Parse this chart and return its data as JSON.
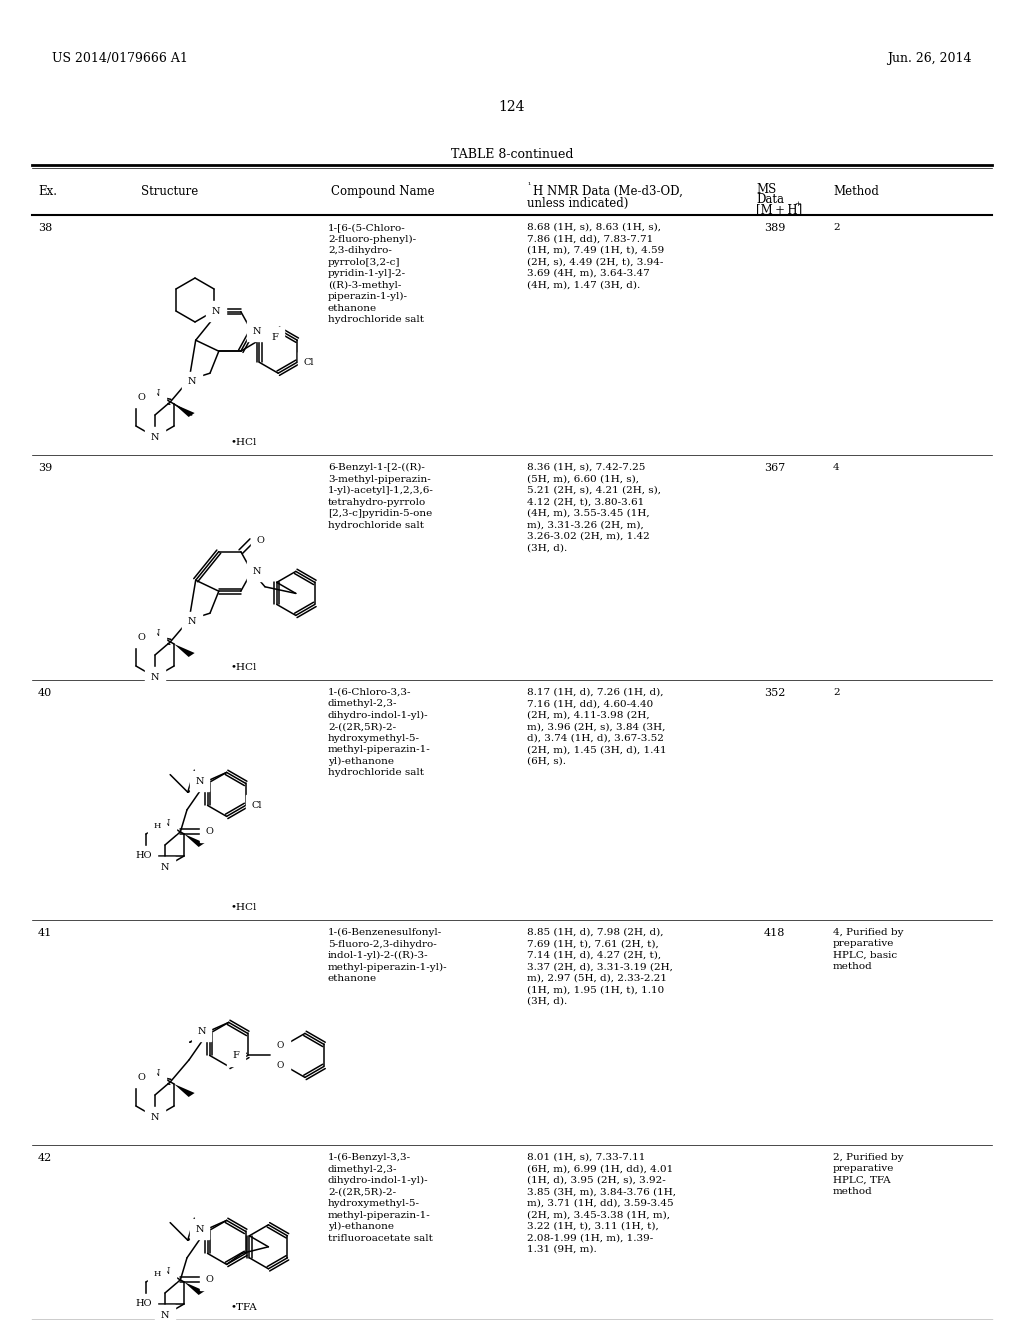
{
  "page_header_left": "US 2014/0179666 A1",
  "page_header_right": "Jun. 26, 2014",
  "page_number": "124",
  "table_title": "TABLE 8-continued",
  "rows": [
    {
      "ex": "38",
      "compound_name": "1-[6-(5-Chloro-\n2-fluoro-phenyl)-\n2,3-dihydro-\npyrrolo[3,2-c]\npyridin-1-yl]-2-\n((R)-3-methyl-\npiperazin-1-yl)-\nethanone\nhydrochloride salt",
      "nmr": "8.68 (1H, s), 8.63 (1H, s),\n7.86 (1H, dd), 7.83-7.71\n(1H, m), 7.49 (1H, t), 4.59\n(2H, s), 4.49 (2H, t), 3.94-\n3.69 (4H, m), 3.64-3.47\n(4H, m), 1.47 (3H, d).",
      "ms": "389",
      "method": "2",
      "salt": "•HCl"
    },
    {
      "ex": "39",
      "compound_name": "6-Benzyl-1-[2-((R)-\n3-methyl-piperazin-\n1-yl)-acetyl]-1,2,3,6-\ntetrahydro-pyrrolo\n[2,3-c]pyridin-5-one\nhydrochloride salt",
      "nmr": "8.36 (1H, s), 7.42-7.25\n(5H, m), 6.60 (1H, s),\n5.21 (2H, s), 4.21 (2H, s),\n4.12 (2H, t), 3.80-3.61\n(4H, m), 3.55-3.45 (1H,\nm), 3.31-3.26 (2H, m),\n3.26-3.02 (2H, m), 1.42\n(3H, d).",
      "ms": "367",
      "method": "4",
      "salt": "•HCl"
    },
    {
      "ex": "40",
      "compound_name": "1-(6-Chloro-3,3-\ndimethyl-2,3-\ndihydro-indol-1-yl)-\n2-((2R,5R)-2-\nhydroxymethyl-5-\nmethyl-piperazin-1-\nyl)-ethanone\nhydrochloride salt",
      "nmr": "8.17 (1H, d), 7.26 (1H, d),\n7.16 (1H, dd), 4.60-4.40\n(2H, m), 4.11-3.98 (2H,\nm), 3.96 (2H, s), 3.84 (3H,\nd), 3.74 (1H, d), 3.67-3.52\n(2H, m), 1.45 (3H, d), 1.41\n(6H, s).",
      "ms": "352",
      "method": "2",
      "salt": "•HCl"
    },
    {
      "ex": "41",
      "compound_name": "1-(6-Benzenesulfonyl-\n5-fluoro-2,3-dihydro-\nindol-1-yl)-2-((R)-3-\nmethyl-piperazin-1-yl)-\nethanone",
      "nmr": "8.85 (1H, d), 7.98 (2H, d),\n7.69 (1H, t), 7.61 (2H, t),\n7.14 (1H, d), 4.27 (2H, t),\n3.37 (2H, d), 3.31-3.19 (2H,\nm), 2.97 (5H, d), 2.33-2.21\n(1H, m), 1.95 (1H, t), 1.10\n(3H, d).",
      "ms": "418",
      "method": "4, Purified by\npreparative\nHPLC, basic\nmethod",
      "salt": ""
    },
    {
      "ex": "42",
      "compound_name": "1-(6-Benzyl-3,3-\ndimethyl-2,3-\ndihydro-indol-1-yl)-\n2-((2R,5R)-2-\nhydroxymethyl-5-\nmethyl-piperazin-1-\nyl)-ethanone\ntrifluoroacetate salt",
      "nmr": "8.01 (1H, s), 7.33-7.11\n(6H, m), 6.99 (1H, dd), 4.01\n(1H, d), 3.95 (2H, s), 3.92-\n3.85 (3H, m), 3.84-3.76 (1H,\nm), 3.71 (1H, dd), 3.59-3.45\n(2H, m), 3.45-3.38 (1H, m),\n3.22 (1H, t), 3.11 (1H, t),\n2.08-1.99 (1H, m), 1.39-\n1.31 (9H, m).",
      "ms": "",
      "method": "2, Purified by\npreparative\nHPLC, TFA\nmethod",
      "salt": "•TFA"
    }
  ]
}
